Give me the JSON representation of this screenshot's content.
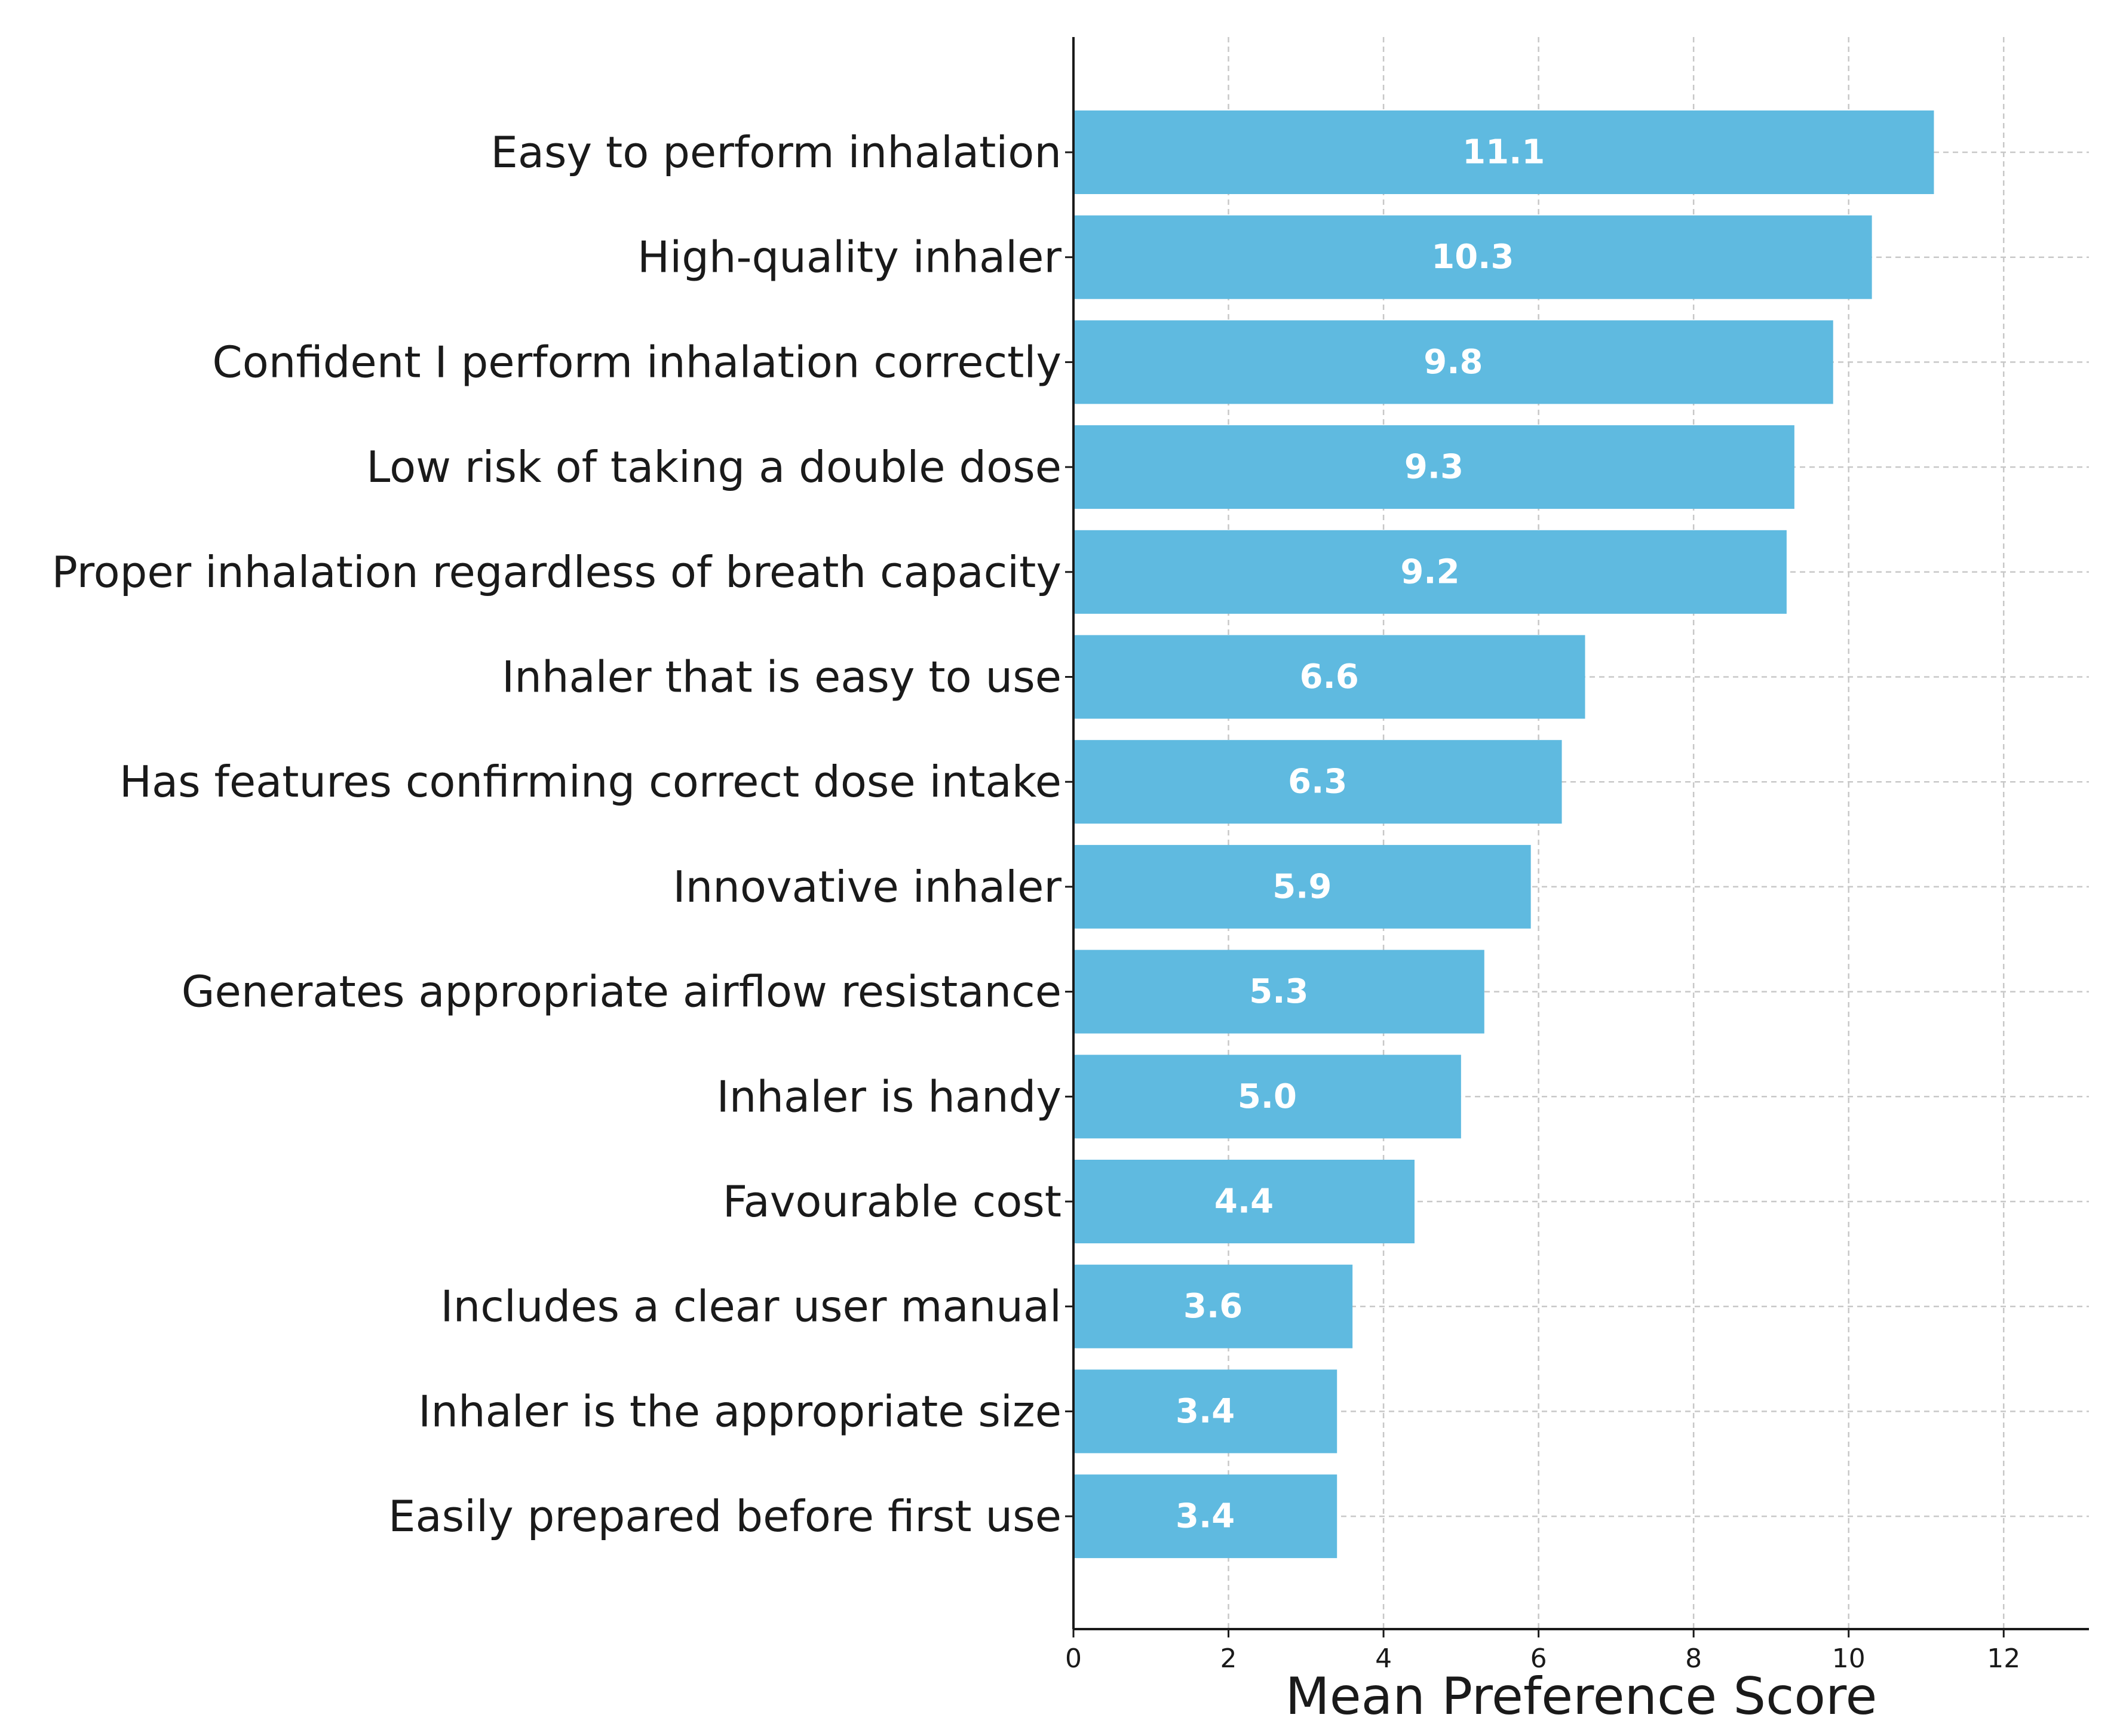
{
  "chart_data": {
    "type": "bar",
    "orientation": "horizontal",
    "categories": [
      "Easy to perform inhalation",
      "High-quality inhaler",
      "Confident I perform inhalation correctly",
      "Low risk of taking a double dose",
      "Proper inhalation regardless of breath capacity",
      "Inhaler that is easy to use",
      "Has features confirming correct dose intake",
      "Innovative inhaler",
      "Generates appropriate airflow resistance",
      "Inhaler is handy",
      "Favourable cost",
      "Includes a clear user manual",
      "Inhaler is the appropriate size",
      "Easily prepared before first use"
    ],
    "values": [
      11.1,
      10.3,
      9.8,
      9.3,
      9.2,
      6.6,
      6.3,
      5.9,
      5.3,
      5.0,
      4.4,
      3.6,
      3.4,
      3.4
    ],
    "value_labels": [
      "11.1",
      "10.3",
      "9.8",
      "9.3",
      "9.2",
      "6.6",
      "6.3",
      "5.9",
      "5.3",
      "5.0",
      "4.4",
      "3.6",
      "3.4",
      "3.4"
    ],
    "title": "",
    "xlabel": "Mean Preference Score",
    "ylabel": "",
    "xlim": [
      0,
      13.1
    ],
    "xticks": [
      0,
      2,
      4,
      6,
      8,
      10,
      12
    ],
    "xtick_labels": [
      "0",
      "2",
      "4",
      "6",
      "8",
      "10",
      "12"
    ],
    "grid": true,
    "bar_color": "#5fbae0",
    "value_label_color": "#ffffff"
  }
}
